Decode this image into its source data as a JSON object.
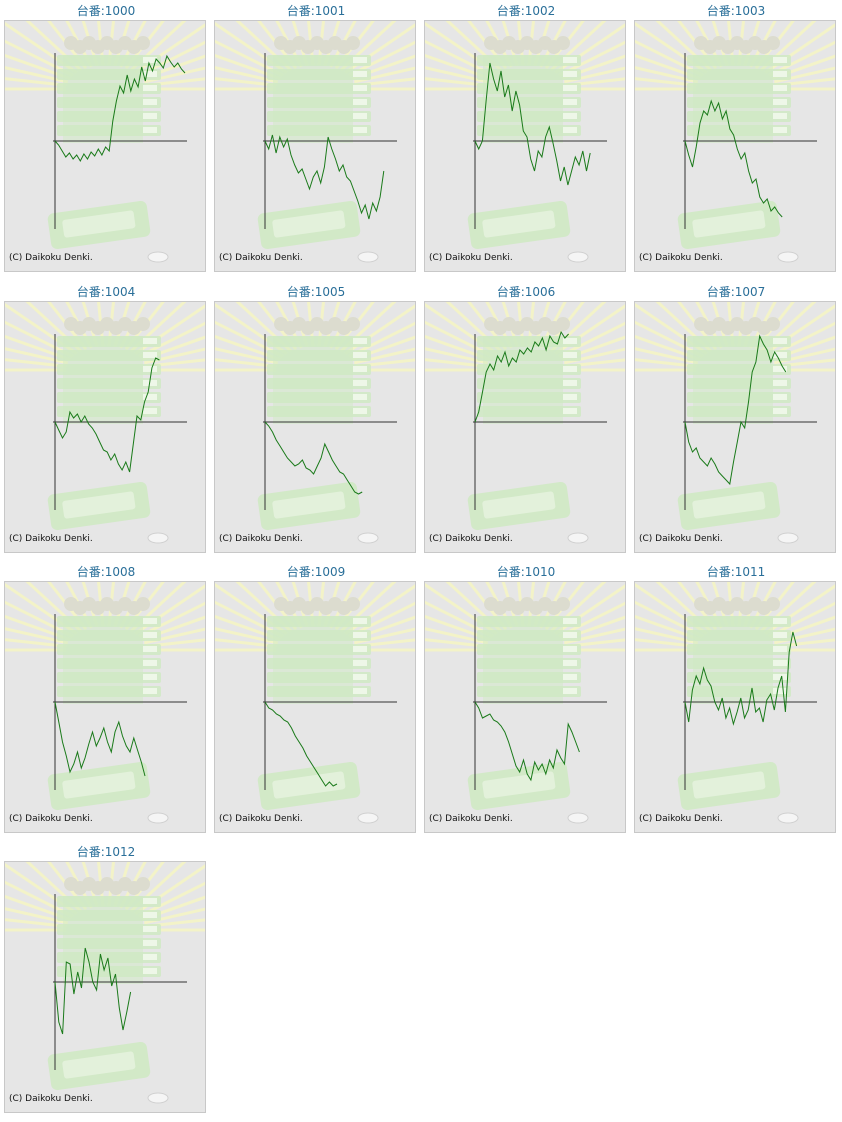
{
  "copyright": "(C) Daikoku Denki.",
  "colors": {
    "title": "#2a6f99",
    "line": "#1a7a1a",
    "axis": "#333333",
    "panel_bg": "#e6e6e6",
    "rays": "#f3f3c8",
    "slot": "#cfe9c3"
  },
  "chart_data": [
    {
      "type": "line",
      "title": "台番:1000",
      "values": [
        0,
        -4,
        -10,
        -16,
        -12,
        -18,
        -14,
        -20,
        -13,
        -18,
        -11,
        -15,
        -8,
        -14,
        -6,
        -10,
        20,
        40,
        55,
        48,
        66,
        50,
        62,
        54,
        74,
        60,
        78,
        70,
        82,
        78,
        73,
        85,
        79,
        74,
        78,
        72,
        68
      ]
    },
    {
      "type": "line",
      "title": "台番:1001",
      "values": [
        0,
        -8,
        6,
        -12,
        4,
        -6,
        2,
        -14,
        -24,
        -32,
        -28,
        -38,
        -48,
        -36,
        -30,
        -42,
        -26,
        4,
        -8,
        -18,
        -30,
        -24,
        -36,
        -40,
        -50,
        -60,
        -72,
        -64,
        -78,
        -62,
        -70,
        -56,
        -30
      ]
    },
    {
      "type": "line",
      "title": "台番:1002",
      "values": [
        0,
        -8,
        0,
        40,
        78,
        62,
        50,
        70,
        44,
        56,
        30,
        50,
        36,
        10,
        4,
        -18,
        -30,
        -10,
        -16,
        4,
        14,
        -2,
        -20,
        -40,
        -26,
        -44,
        -30,
        -16,
        -24,
        -10,
        -30,
        -12
      ]
    },
    {
      "type": "line",
      "title": "台番:1003",
      "values": [
        0,
        -14,
        -26,
        -6,
        18,
        30,
        26,
        40,
        30,
        38,
        22,
        30,
        12,
        6,
        -8,
        -18,
        -12,
        -30,
        -42,
        -38,
        -56,
        -62,
        -58,
        -70,
        -66,
        -72,
        -76
      ]
    },
    {
      "type": "line",
      "title": "台番:1004",
      "values": [
        0,
        -8,
        -16,
        -10,
        10,
        4,
        8,
        0,
        6,
        -2,
        -6,
        -12,
        -20,
        -28,
        -30,
        -38,
        -32,
        -42,
        -48,
        -40,
        -50,
        -22,
        6,
        2,
        20,
        30,
        54,
        64,
        62
      ]
    },
    {
      "type": "line",
      "title": "台番:1005",
      "values": [
        0,
        -4,
        -10,
        -18,
        -24,
        -30,
        -36,
        -40,
        -44,
        -42,
        -38,
        -46,
        -48,
        -52,
        -44,
        -36,
        -22,
        -30,
        -38,
        -44,
        -50,
        -52,
        -58,
        -64,
        -70,
        -72,
        -70
      ]
    },
    {
      "type": "line",
      "title": "台番:1006",
      "values": [
        0,
        10,
        30,
        50,
        58,
        52,
        66,
        60,
        70,
        56,
        64,
        60,
        72,
        68,
        74,
        70,
        80,
        76,
        84,
        72,
        86,
        80,
        78,
        90,
        84,
        88
      ]
    },
    {
      "type": "line",
      "title": "台番:1007",
      "values": [
        0,
        -20,
        -30,
        -26,
        -36,
        -40,
        -44,
        -36,
        -42,
        -50,
        -54,
        -58,
        -62,
        -40,
        -20,
        0,
        -6,
        20,
        50,
        60,
        86,
        78,
        72,
        60,
        70,
        64,
        56,
        50
      ]
    },
    {
      "type": "line",
      "title": "台番:1008",
      "values": [
        0,
        -20,
        -40,
        -54,
        -70,
        -62,
        -50,
        -66,
        -56,
        -42,
        -30,
        -44,
        -36,
        -26,
        -40,
        -50,
        -30,
        -20,
        -34,
        -44,
        -50,
        -36,
        -48,
        -60,
        -74
      ]
    },
    {
      "type": "line",
      "title": "台番:1009",
      "values": [
        0,
        -6,
        -8,
        -12,
        -14,
        -18,
        -20,
        -26,
        -34,
        -40,
        -46,
        -54,
        -60,
        -66,
        -72,
        -78,
        -84,
        -80,
        -84,
        -82
      ]
    },
    {
      "type": "line",
      "title": "台番:1010",
      "values": [
        0,
        -6,
        -16,
        -14,
        -12,
        -18,
        -20,
        -24,
        -30,
        -40,
        -52,
        -64,
        -70,
        -58,
        -72,
        -78,
        -60,
        -68,
        -62,
        -72,
        -58,
        -66,
        -48,
        -56,
        -62,
        -22,
        -30,
        -40,
        -50
      ]
    },
    {
      "type": "line",
      "title": "台番:1011",
      "values": [
        0,
        -20,
        12,
        26,
        18,
        34,
        22,
        16,
        0,
        -8,
        4,
        -16,
        -6,
        -22,
        -10,
        4,
        -16,
        -8,
        14,
        -10,
        -6,
        -20,
        2,
        8,
        -8,
        14,
        26,
        -10,
        50,
        70,
        56
      ]
    },
    {
      "type": "line",
      "title": "台番:1012",
      "values": [
        0,
        -40,
        -52,
        20,
        18,
        -12,
        10,
        -6,
        34,
        20,
        0,
        -8,
        28,
        12,
        24,
        -4,
        8,
        -26,
        -48,
        -30,
        -10
      ]
    }
  ]
}
